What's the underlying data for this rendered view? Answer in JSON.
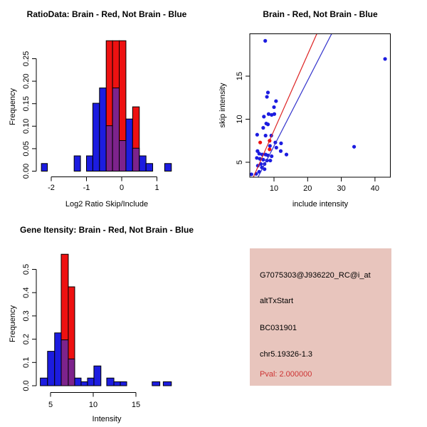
{
  "background": "#ffffff",
  "palette": {
    "bar_blue": "#1c1ce0",
    "bar_red": "#ee1111",
    "bar_overlap_purple": "#7d238c",
    "bar_border": "#000000",
    "point_blue": "#1c1ce0",
    "point_red": "#ee1111",
    "fit_line_red": "#dd2222",
    "fit_line_blue": "#3333cc",
    "axis_black": "#000000",
    "info_box_bg": "#e8c5bd",
    "pval_red": "#cd3333"
  },
  "chart_data": [
    {
      "id": "ratio_hist",
      "type": "bar",
      "title": "RatioData: Brain - Red, Not Brain - Blue",
      "xlabel": "Log2 Ratio Skip/Include",
      "ylabel": "Frequency",
      "xlim": [
        -2.5,
        1.55
      ],
      "ylim": [
        0,
        0.295
      ],
      "xticks": [
        -2,
        -1,
        0,
        1
      ],
      "xtick_labels": [
        "-2",
        "-1",
        "0",
        "1"
      ],
      "yticks": [
        0.0,
        0.05,
        0.1,
        0.15,
        0.2,
        0.25
      ],
      "ytick_labels": [
        "0.00",
        "0.05",
        "0.10",
        "0.15",
        "0.20",
        "0.25"
      ],
      "grid": false,
      "legend": "none",
      "bars": [
        {
          "x0": -2.28,
          "x1": -2.11,
          "blue": 0.017,
          "red": 0,
          "overlap": 0
        },
        {
          "x0": -1.35,
          "x1": -1.17,
          "blue": 0.034,
          "red": 0,
          "overlap": 0
        },
        {
          "x0": -1.0,
          "x1": -0.82,
          "blue": 0.034,
          "red": 0,
          "overlap": 0
        },
        {
          "x0": -0.82,
          "x1": -0.63,
          "blue": 0.151,
          "red": 0,
          "overlap": 0
        },
        {
          "x0": -0.63,
          "x1": -0.44,
          "blue": 0.185,
          "red": 0,
          "overlap": 0
        },
        {
          "x0": -0.44,
          "x1": -0.26,
          "blue": 0,
          "red": 0.29,
          "overlap": 0.101
        },
        {
          "x0": -0.26,
          "x1": -0.07,
          "blue": 0,
          "red": 0.29,
          "overlap": 0.185
        },
        {
          "x0": -0.07,
          "x1": 0.12,
          "blue": 0,
          "red": 0.29,
          "overlap": 0.068
        },
        {
          "x0": 0.12,
          "x1": 0.31,
          "blue": 0.116,
          "red": 0,
          "overlap": 0
        },
        {
          "x0": 0.31,
          "x1": 0.5,
          "blue": 0,
          "red": 0.143,
          "overlap": 0.051
        },
        {
          "x0": 0.5,
          "x1": 0.69,
          "blue": 0.034,
          "red": 0,
          "overlap": 0
        },
        {
          "x0": 0.69,
          "x1": 0.88,
          "blue": 0.017,
          "red": 0,
          "overlap": 0
        },
        {
          "x0": 1.22,
          "x1": 1.41,
          "blue": 0.017,
          "red": 0,
          "overlap": 0
        }
      ]
    },
    {
      "id": "scatter",
      "type": "scatter",
      "title": "Brain - Red, Not Brain - Blue",
      "xlabel": "include intensity",
      "ylabel": "skip intensity",
      "xlim": [
        2.8,
        44.6
      ],
      "ylim": [
        3.3,
        19.9
      ],
      "xticks": [
        10,
        20,
        30,
        40
      ],
      "xtick_labels": [
        "10",
        "20",
        "30",
        "40"
      ],
      "yticks": [
        5,
        10,
        15
      ],
      "ytick_labels": [
        "5",
        "10",
        "15"
      ],
      "grid": false,
      "legend": "none",
      "blue_points": [
        [
          7.4,
          19.1
        ],
        [
          43.0,
          17.0
        ],
        [
          33.8,
          6.8
        ],
        [
          8.2,
          13.1
        ],
        [
          7.9,
          12.6
        ],
        [
          10.6,
          12.1
        ],
        [
          10.0,
          11.4
        ],
        [
          8.4,
          10.6
        ],
        [
          9.3,
          10.5
        ],
        [
          10.1,
          10.6
        ],
        [
          7.0,
          10.3
        ],
        [
          7.7,
          9.5
        ],
        [
          8.2,
          9.4
        ],
        [
          6.8,
          9.0
        ],
        [
          5.0,
          8.2
        ],
        [
          7.5,
          8.1
        ],
        [
          9.2,
          8.1
        ],
        [
          10.4,
          7.3
        ],
        [
          12.1,
          7.2
        ],
        [
          10.7,
          6.7
        ],
        [
          12.0,
          6.3
        ],
        [
          13.7,
          5.9
        ],
        [
          5.1,
          6.3
        ],
        [
          5.6,
          6.0
        ],
        [
          6.5,
          5.9
        ],
        [
          7.5,
          5.9
        ],
        [
          8.2,
          5.8
        ],
        [
          9.3,
          5.7
        ],
        [
          8.8,
          6.9
        ],
        [
          4.9,
          5.5
        ],
        [
          5.8,
          5.4
        ],
        [
          6.8,
          5.3
        ],
        [
          7.9,
          5.2
        ],
        [
          8.9,
          5.2
        ],
        [
          6.1,
          4.8
        ],
        [
          7.2,
          4.8
        ],
        [
          5.2,
          4.6
        ],
        [
          6.4,
          4.4
        ],
        [
          7.2,
          4.2
        ],
        [
          5.6,
          3.9
        ],
        [
          4.7,
          3.65
        ],
        [
          3.3,
          3.6
        ]
      ],
      "red_points": [
        [
          5.9,
          7.3
        ],
        [
          8.7,
          7.5
        ],
        [
          8.7,
          6.5
        ]
      ],
      "red_line": [
        [
          3.9,
          3.3
        ],
        [
          22.7,
          19.9
        ]
      ],
      "blue_line": [
        [
          5.3,
          3.3
        ],
        [
          27.1,
          19.9
        ]
      ]
    },
    {
      "id": "gene_hist",
      "type": "bar",
      "title": "Gene Itensity: Brain - Red, Not Brain - Blue",
      "xlabel": "Intensity",
      "ylabel": "Frequency",
      "xlim": [
        3.3,
        19.8
      ],
      "ylim": [
        0,
        0.6
      ],
      "xticks": [
        5,
        10,
        15
      ],
      "xtick_labels": [
        "5",
        "10",
        "15"
      ],
      "yticks": [
        0.0,
        0.1,
        0.2,
        0.3,
        0.4,
        0.5
      ],
      "ytick_labels": [
        "0.0",
        "0.1",
        "0.2",
        "0.3",
        "0.4",
        "0.5"
      ],
      "grid": false,
      "legend": "none",
      "bars": [
        {
          "x0": 3.8,
          "x1": 4.65,
          "blue": 0.033,
          "red": 0,
          "overlap": 0
        },
        {
          "x0": 4.65,
          "x1": 5.48,
          "blue": 0.148,
          "red": 0,
          "overlap": 0
        },
        {
          "x0": 5.48,
          "x1": 6.25,
          "blue": 0.227,
          "red": 0,
          "overlap": 0
        },
        {
          "x0": 6.25,
          "x1": 7.08,
          "blue": 0,
          "red": 0.565,
          "overlap": 0.197
        },
        {
          "x0": 7.08,
          "x1": 7.83,
          "blue": 0,
          "red": 0.425,
          "overlap": 0.115
        },
        {
          "x0": 7.83,
          "x1": 8.58,
          "blue": 0.033,
          "red": 0,
          "overlap": 0
        },
        {
          "x0": 8.58,
          "x1": 9.33,
          "blue": 0.017,
          "red": 0,
          "overlap": 0
        },
        {
          "x0": 9.33,
          "x1": 10.08,
          "blue": 0.033,
          "red": 0,
          "overlap": 0
        },
        {
          "x0": 10.08,
          "x1": 10.9,
          "blue": 0.085,
          "red": 0,
          "overlap": 0
        },
        {
          "x0": 11.58,
          "x1": 12.42,
          "blue": 0.033,
          "red": 0,
          "overlap": 0
        },
        {
          "x0": 12.42,
          "x1": 13.17,
          "blue": 0.017,
          "red": 0,
          "overlap": 0
        },
        {
          "x0": 13.17,
          "x1": 13.92,
          "blue": 0.017,
          "red": 0,
          "overlap": 0
        },
        {
          "x0": 16.9,
          "x1": 17.8,
          "blue": 0.017,
          "red": 0,
          "overlap": 0
        },
        {
          "x0": 18.2,
          "x1": 19.15,
          "blue": 0.017,
          "red": 0,
          "overlap": 0
        }
      ]
    }
  ],
  "info_panel": {
    "bg": "#e8c5bd",
    "lines": [
      {
        "text": "G7075303@J936220_RC@i_at",
        "color": "#000000"
      },
      {
        "text": "altTxStart",
        "color": "#000000"
      },
      {
        "text": "BC031901",
        "color": "#000000"
      },
      {
        "text": "chr5.19326-1.3",
        "color": "#000000"
      },
      {
        "text": "Pval: 2.000000",
        "color": "#cd3333"
      }
    ]
  }
}
